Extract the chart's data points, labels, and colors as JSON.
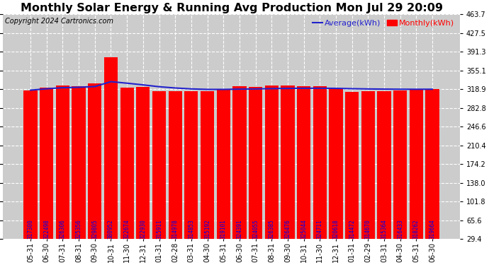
{
  "title": "Monthly Solar Energy & Running Avg Production Mon Jul 29 20:09",
  "copyright": "Copyright 2024 Cartronics.com",
  "legend_avg": "Average(kWh)",
  "legend_monthly": "Monthly(kWh)",
  "categories": [
    "05-31",
    "06-30",
    "07-31",
    "08-31",
    "09-30",
    "10-31",
    "11-30",
    "12-31",
    "01-31",
    "02-28",
    "03-31",
    "04-30",
    "05-31",
    "06-30",
    "07-31",
    "08-31",
    "09-30",
    "10-31",
    "11-30",
    "12-31",
    "01-31",
    "02-29",
    "03-31",
    "04-30",
    "05-31",
    "06-30"
  ],
  "bar_values": [
    317.3,
    322.498,
    326.306,
    325.356,
    329.805,
    380.952,
    322.674,
    322.93,
    315.911,
    314.978,
    314.853,
    315.192,
    319.101,
    324.391,
    324.055,
    326.385,
    326.476,
    325.044,
    324.711,
    320.618,
    314.472,
    314.67,
    315.364,
    316.433,
    318.262,
    319.664
  ],
  "bar_labels": [
    "317300",
    "322498",
    "326306",
    "325356",
    "329805",
    "380952",
    "322674",
    "322930",
    "315911",
    "314978",
    "314853",
    "315192",
    "319101",
    "324391",
    "324055",
    "326385",
    "326476",
    "325044",
    "324711",
    "320618",
    "314472",
    "314670",
    "315364",
    "316433",
    "318262",
    "319664"
  ],
  "running_avg": [
    317.3,
    319.899,
    322.035,
    322.865,
    324.253,
    333.703,
    330.724,
    327.502,
    323.897,
    321.503,
    319.718,
    318.754,
    318.761,
    319.237,
    319.643,
    320.268,
    320.685,
    320.938,
    320.979,
    320.778,
    320.141,
    319.629,
    319.3,
    319.094,
    319.003,
    319.056
  ],
  "bar_color": "#ff0000",
  "avg_line_color": "#2222cc",
  "bg_color": "#ffffff",
  "plot_bg_color": "#cccccc",
  "grid_color": "#ffffff",
  "title_color": "#000000",
  "copyright_color": "#000000",
  "bar_label_color": "#0000ee",
  "ytick_values": [
    29.4,
    65.6,
    101.8,
    138.0,
    174.2,
    210.4,
    246.6,
    282.8,
    318.9,
    355.1,
    391.3,
    427.5,
    463.7
  ],
  "ytick_labels": [
    "29.4",
    "65.6",
    "101.8",
    "138.0",
    "174.2",
    "210.4",
    "246.6",
    "282.8",
    "318.9",
    "355.1",
    "391.3",
    "427.5",
    "463.7"
  ],
  "ymin": 29.4,
  "ymax": 463.7,
  "title_fontsize": 11.5,
  "copyright_fontsize": 7,
  "bar_label_fontsize": 5.5,
  "tick_fontsize": 7,
  "legend_fontsize": 8
}
